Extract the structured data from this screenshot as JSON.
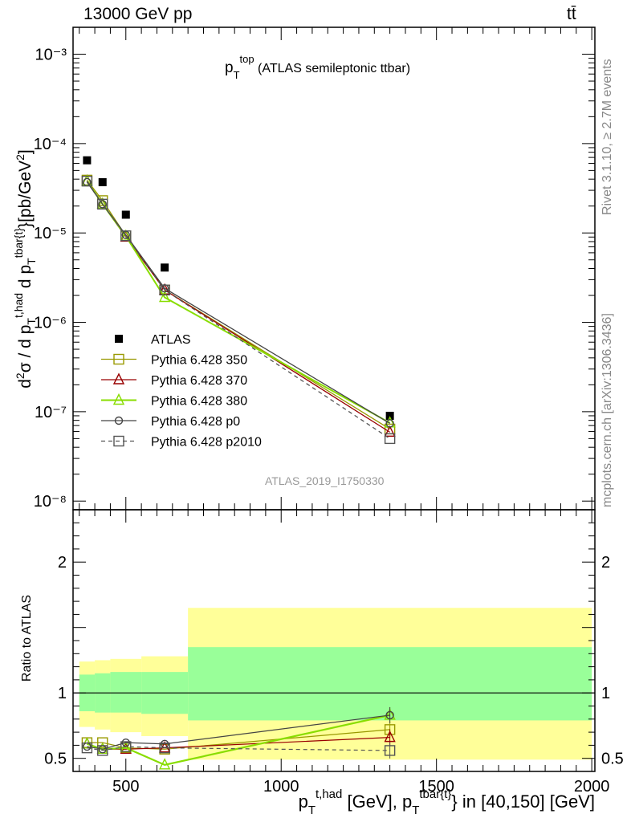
{
  "header": {
    "left": "13000 GeV pp",
    "right": "tt̄"
  },
  "side_labels": {
    "rivet": "Rivet 3.1.10, ≥ 2.7M events",
    "mcplots": "mcplots.cern.ch [arXiv:1306.3436]"
  },
  "watermark": "ATLAS_2019_I1750330",
  "chart_data": [
    {
      "type": "scatter",
      "panel": "main",
      "title": "p_T^top (ATLAS semileptonic ttbar)",
      "ylabel": "d²σ / d p_T^t,had d p_T^tbar{t}}[pb/GeV²]",
      "ylog": true,
      "ylim": [
        8e-09,
        0.002
      ],
      "xlim": [
        330,
        2010
      ],
      "x": [
        375,
        425,
        500,
        625,
        1350
      ],
      "series": [
        {
          "name": "ATLAS",
          "color": "#000000",
          "marker": "filled-square",
          "values": [
            6.5e-05,
            3.7e-05,
            1.6e-05,
            4.1e-06,
            9e-08
          ]
        },
        {
          "name": "Pythia 6.428 350",
          "color": "#999900",
          "marker": "open-square",
          "values": [
            3.9e-05,
            2.3e-05,
            9.3e-06,
            2.3e-06,
            6.4e-08
          ]
        },
        {
          "name": "Pythia 6.428 370",
          "color": "#990000",
          "marker": "open-triangle",
          "values": [
            3.8e-05,
            2.1e-05,
            9e-06,
            2.3e-06,
            5.9e-08
          ]
        },
        {
          "name": "Pythia 6.428 380",
          "color": "#88dd00",
          "marker": "open-triangle",
          "values": [
            3.8e-05,
            2.1e-05,
            9.2e-06,
            1.9e-06,
            7.5e-08
          ]
        },
        {
          "name": "Pythia 6.428 p0",
          "color": "#444444",
          "marker": "open-circle",
          "values": [
            3.7e-05,
            2.1e-05,
            9.5e-06,
            2.4e-06,
            7.4e-08
          ]
        },
        {
          "name": "Pythia 6.428 p2010",
          "color": "#555555",
          "marker": "open-square",
          "dashed": true,
          "values": [
            3.8e-05,
            2.1e-05,
            9.3e-06,
            2.3e-06,
            5e-08
          ]
        }
      ],
      "yticks": [
        "10⁻⁸",
        "10⁻⁷",
        "10⁻⁶",
        "10⁻⁵",
        "10⁻⁴",
        "10⁻³"
      ],
      "legend_position": "bottom-left",
      "grid": false
    },
    {
      "type": "scatter",
      "panel": "ratio",
      "ylabel": "Ratio to ATLAS",
      "xlabel": "p_T^t,had [GeV], p_T^tbar{t}} in [40,150] [GeV]",
      "ylim": [
        0.4,
        2.4
      ],
      "xlim": [
        330,
        2010
      ],
      "xticks": [
        500,
        1000,
        1500,
        2000
      ],
      "yticks": [
        0.5,
        1,
        2
      ],
      "x": [
        375,
        425,
        500,
        625,
        1350
      ],
      "bands": {
        "edges": [
          350,
          400,
          450,
          550,
          700,
          2000
        ],
        "inner": [
          [
            0.86,
            1.14
          ],
          [
            0.85,
            1.15
          ],
          [
            0.85,
            1.16
          ],
          [
            0.84,
            1.16
          ],
          [
            0.79,
            1.35
          ]
        ],
        "outer": [
          [
            0.74,
            1.24
          ],
          [
            0.72,
            1.25
          ],
          [
            0.7,
            1.26
          ],
          [
            0.67,
            1.28
          ],
          [
            0.49,
            1.65
          ]
        ]
      },
      "series": [
        {
          "name": "Pythia 6.428 350",
          "color": "#999900",
          "marker": "open-square",
          "values": [
            0.62,
            0.62,
            0.58,
            0.57,
            0.72
          ]
        },
        {
          "name": "Pythia 6.428 370",
          "color": "#990000",
          "marker": "open-triangle",
          "values": [
            0.61,
            0.57,
            0.57,
            0.58,
            0.66
          ]
        },
        {
          "name": "Pythia 6.428 380",
          "color": "#88dd00",
          "marker": "open-triangle",
          "values": [
            0.61,
            0.57,
            0.58,
            0.45,
            0.83
          ]
        },
        {
          "name": "Pythia 6.428 p0",
          "color": "#444444",
          "marker": "open-circle",
          "values": [
            0.59,
            0.57,
            0.62,
            0.61,
            0.83
          ]
        },
        {
          "name": "Pythia 6.428 p2010",
          "color": "#555555",
          "marker": "open-square",
          "dashed": true,
          "values": [
            0.58,
            0.56,
            0.59,
            0.58,
            0.56
          ]
        }
      ]
    }
  ]
}
